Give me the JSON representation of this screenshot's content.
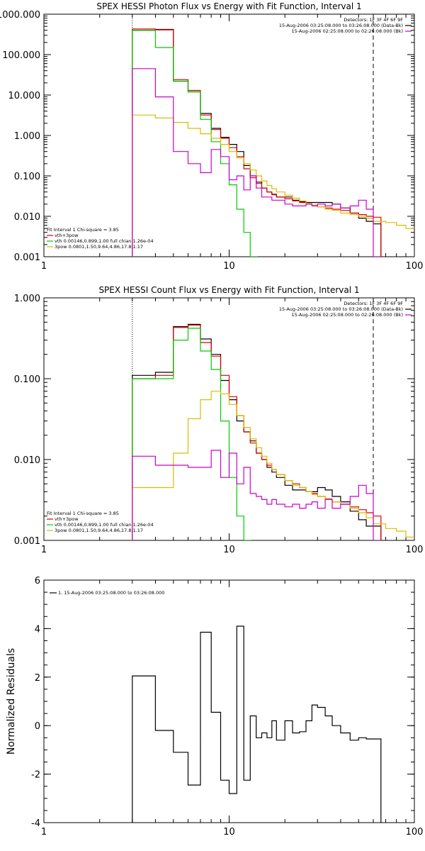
{
  "figure_title": "",
  "chart_data": [
    {
      "type": "line",
      "title": "SPEX HESSI Photon Flux vs Energy with Fit Function, Interval 1",
      "xscale": "log",
      "yscale": "log",
      "xlim": [
        1,
        100
      ],
      "ylim": [
        0.001,
        1000
      ],
      "xticks": [
        1,
        10,
        100
      ],
      "xtick_labels": [
        "1",
        "10",
        "100"
      ],
      "yticks": [
        0.001,
        0.01,
        0.1,
        1,
        10,
        100,
        1000
      ],
      "ytick_labels": [
        "0.001",
        "0.010",
        "0.100",
        "1.000",
        "10.000",
        "100.000",
        "1000.000"
      ],
      "xlabel": "",
      "ylabel": "",
      "vlines": [
        {
          "x": 3.0,
          "style": "dotted",
          "color": "#000000"
        },
        {
          "x": 60.0,
          "style": "dashed",
          "color": "#000000"
        }
      ],
      "info_legend": {
        "placement": "top-right",
        "lines": [
          {
            "text": "Detectors: 1F 3F 4F 6F 9F",
            "color": "#000000"
          },
          {
            "text": "15-Aug-2006 03:25:08.000 to 03:26:08.000 (Data-Bk)",
            "color": "#000000"
          },
          {
            "text": "15-Aug-2006 02:25:08.000 to 02:26:08.000 (Bk)",
            "color": "#cc00cc"
          }
        ]
      },
      "fit_legend": {
        "placement": "bottom-left",
        "header": "Fit Interval 1    Chi-square = 3.85",
        "entries": [
          {
            "text": "vth+3pow",
            "color": "#dd0000"
          },
          {
            "text": "vth 0.00146,0.899,1.00   full chian 1.26e-04",
            "color": "#00cc00"
          },
          {
            "text": "3pow 0.0801,1.50,9.64,4.86,17.8,1.17",
            "color": "#ddbb00"
          }
        ]
      },
      "series": [
        {
          "role": "data",
          "color": "#000000",
          "drawstyle": "steps",
          "x": [
            3,
            4,
            5,
            6,
            7,
            8,
            9,
            10,
            11,
            12,
            13,
            14,
            15,
            16,
            17,
            18,
            20,
            22,
            24,
            26,
            28,
            30,
            33,
            36,
            40,
            45,
            50,
            55,
            60
          ],
          "y": [
            400,
            420,
            22,
            12,
            3.5,
            1.5,
            0.9,
            0.6,
            0.4,
            0.18,
            0.1,
            0.07,
            0.05,
            0.04,
            0.035,
            0.03,
            0.03,
            0.025,
            0.023,
            0.022,
            0.022,
            0.022,
            0.022,
            0.02,
            0.016,
            0.012,
            0.009,
            0.0075,
            0.0065
          ]
        },
        {
          "role": "total",
          "color": "#dd0000",
          "drawstyle": "steps",
          "x": [
            3,
            4,
            5,
            6,
            7,
            8,
            9,
            10,
            11,
            12,
            13,
            14,
            15,
            16,
            17,
            18,
            20,
            22,
            24,
            26,
            28,
            30,
            33,
            36,
            40,
            45,
            50,
            55,
            60
          ],
          "y": [
            430,
            410,
            24,
            13,
            3.2,
            1.4,
            0.85,
            0.5,
            0.3,
            0.15,
            0.09,
            0.065,
            0.05,
            0.04,
            0.034,
            0.03,
            0.027,
            0.024,
            0.022,
            0.02,
            0.018,
            0.017,
            0.016,
            0.015,
            0.014,
            0.012,
            0.011,
            0.01,
            0.0095
          ]
        },
        {
          "role": "thermal",
          "color": "#00cc00",
          "drawstyle": "steps",
          "x": [
            3,
            4,
            5,
            6,
            7,
            8,
            9,
            10,
            11,
            12,
            13
          ],
          "y": [
            400,
            150,
            22,
            12,
            2.5,
            0.7,
            0.2,
            0.06,
            0.015,
            0.004,
            0.001
          ]
        },
        {
          "role": "nonthermal",
          "color": "#ddbb00",
          "drawstyle": "steps",
          "x": [
            3,
            4,
            5,
            6,
            7,
            8,
            9,
            10,
            11,
            12,
            13,
            14,
            15,
            16,
            17,
            18,
            20,
            22,
            24,
            26,
            28,
            30,
            33,
            36,
            40,
            45,
            50,
            55,
            60,
            70,
            80,
            90,
            100
          ],
          "y": [
            3.2,
            2.7,
            2.1,
            1.5,
            1.1,
            0.85,
            0.6,
            0.4,
            0.28,
            0.2,
            0.14,
            0.1,
            0.075,
            0.058,
            0.048,
            0.04,
            0.033,
            0.028,
            0.024,
            0.021,
            0.019,
            0.017,
            0.015,
            0.014,
            0.012,
            0.011,
            0.01,
            0.009,
            0.0075,
            0.007,
            0.006,
            0.005,
            0.005
          ]
        },
        {
          "role": "background",
          "color": "#cc00cc",
          "drawstyle": "steps",
          "x": [
            3,
            4,
            5,
            6,
            7,
            8,
            9,
            10,
            11,
            12,
            13,
            14,
            15,
            16,
            17,
            18,
            20,
            22,
            24,
            26,
            28,
            30,
            33,
            36,
            40,
            45,
            50,
            55,
            60
          ],
          "y": [
            45,
            9,
            0.4,
            0.2,
            0.12,
            0.45,
            0.3,
            0.08,
            0.1,
            0.045,
            0.1,
            0.05,
            0.03,
            0.03,
            0.025,
            0.025,
            0.02,
            0.018,
            0.018,
            0.02,
            0.018,
            0.02,
            0.018,
            0.02,
            0.016,
            0.018,
            0.025,
            0.015,
            0.001
          ]
        }
      ]
    },
    {
      "type": "line",
      "title": "SPEX HESSI Count Flux vs Energy with Fit Function, Interval 1",
      "xscale": "log",
      "yscale": "log",
      "xlim": [
        1,
        100
      ],
      "ylim": [
        0.001,
        1.0
      ],
      "xticks": [
        1,
        10,
        100
      ],
      "xtick_labels": [
        "1",
        "10",
        "100"
      ],
      "yticks": [
        0.001,
        0.01,
        0.1,
        1
      ],
      "ytick_labels": [
        "0.001",
        "0.010",
        "0.100",
        "1.000"
      ],
      "xlabel": "",
      "ylabel": "",
      "vlines": [
        {
          "x": 3.0,
          "style": "dotted",
          "color": "#000000"
        },
        {
          "x": 60.0,
          "style": "dashed",
          "color": "#000000"
        }
      ],
      "info_legend": {
        "placement": "top-right",
        "lines": [
          {
            "text": "Detectors: 1F 3F 4F 6F 9F",
            "color": "#000000"
          },
          {
            "text": "15-Aug-2006 03:25:08.000 to 03:26:08.000 (Data-Bk)",
            "color": "#000000"
          },
          {
            "text": "15-Aug-2006 02:25:08.000 to 02:26:08.000 (Bk)",
            "color": "#cc00cc"
          }
        ]
      },
      "fit_legend": {
        "placement": "bottom-left",
        "header": "Fit Interval 1    Chi-square = 3.85",
        "entries": [
          {
            "text": "vth+3pow",
            "color": "#dd0000"
          },
          {
            "text": "vth 0.00146,0.899,1.00   full chian 1.26e-04",
            "color": "#00cc00"
          },
          {
            "text": "3pow 0.0801,1.50,9.64,4.86,17.8,1.17",
            "color": "#ddbb00"
          }
        ]
      },
      "series": [
        {
          "role": "data",
          "color": "#000000",
          "drawstyle": "steps",
          "x": [
            3,
            4,
            5,
            6,
            7,
            8,
            9,
            10,
            11,
            12,
            13,
            14,
            15,
            16,
            17,
            18,
            20,
            22,
            24,
            26,
            28,
            30,
            33,
            36,
            40,
            45,
            50,
            55,
            60
          ],
          "y": [
            0.11,
            0.12,
            0.44,
            0.47,
            0.31,
            0.2,
            0.095,
            0.055,
            0.03,
            0.022,
            0.017,
            0.012,
            0.01,
            0.008,
            0.007,
            0.006,
            0.0048,
            0.0042,
            0.0042,
            0.004,
            0.004,
            0.0045,
            0.0042,
            0.0035,
            0.003,
            0.0023,
            0.0018,
            0.0015,
            0.0015
          ]
        },
        {
          "role": "total",
          "color": "#dd0000",
          "drawstyle": "steps",
          "x": [
            3,
            4,
            5,
            6,
            7,
            8,
            9,
            10,
            11,
            12,
            13,
            14,
            15,
            16,
            17,
            18,
            20,
            22,
            24,
            26,
            28,
            30,
            33,
            36,
            40,
            45,
            50,
            55,
            60
          ],
          "y": [
            0.1,
            0.11,
            0.43,
            0.46,
            0.28,
            0.19,
            0.11,
            0.06,
            0.035,
            0.022,
            0.016,
            0.012,
            0.01,
            0.0085,
            0.0075,
            0.0065,
            0.0055,
            0.005,
            0.0045,
            0.004,
            0.0038,
            0.0035,
            0.0032,
            0.003,
            0.0028,
            0.0026,
            0.0024,
            0.0022,
            0.002
          ]
        },
        {
          "role": "thermal",
          "color": "#00cc00",
          "drawstyle": "steps",
          "x": [
            3,
            4,
            5,
            6,
            7,
            8,
            9,
            10,
            11,
            12
          ],
          "y": [
            0.1,
            0.1,
            0.3,
            0.42,
            0.22,
            0.13,
            0.03,
            0.006,
            0.002,
            0.001
          ]
        },
        {
          "role": "nonthermal",
          "color": "#ddbb00",
          "drawstyle": "steps",
          "x": [
            3,
            4,
            5,
            6,
            7,
            8,
            9,
            10,
            11,
            12,
            13,
            14,
            15,
            16,
            17,
            18,
            20,
            22,
            24,
            26,
            28,
            30,
            33,
            36,
            40,
            45,
            50,
            55,
            60,
            70,
            80,
            90,
            100
          ],
          "y": [
            0.0045,
            0.0045,
            0.012,
            0.032,
            0.055,
            0.07,
            0.065,
            0.048,
            0.035,
            0.025,
            0.018,
            0.014,
            0.011,
            0.009,
            0.0075,
            0.0065,
            0.0055,
            0.0048,
            0.0045,
            0.004,
            0.0037,
            0.0035,
            0.0033,
            0.003,
            0.0028,
            0.0025,
            0.0022,
            0.0019,
            0.0016,
            0.0014,
            0.0013,
            0.0011,
            0.0011
          ]
        },
        {
          "role": "background",
          "color": "#cc00cc",
          "drawstyle": "steps",
          "x": [
            3,
            4,
            5,
            6,
            7,
            8,
            9,
            10,
            11,
            12,
            13,
            14,
            15,
            16,
            17,
            18,
            20,
            22,
            24,
            26,
            28,
            30,
            33,
            36,
            40,
            45,
            50,
            55,
            60
          ],
          "y": [
            0.011,
            0.0085,
            0.0085,
            0.008,
            0.008,
            0.013,
            0.006,
            0.012,
            0.005,
            0.008,
            0.0038,
            0.0035,
            0.0032,
            0.0028,
            0.0032,
            0.0028,
            0.0026,
            0.0028,
            0.0025,
            0.0028,
            0.003,
            0.0025,
            0.0032,
            0.0025,
            0.0028,
            0.0035,
            0.0048,
            0.0038,
            0.001
          ]
        }
      ]
    },
    {
      "type": "line",
      "title": "",
      "xscale": "log",
      "yscale": "linear",
      "xlim": [
        1,
        100
      ],
      "ylim": [
        -4,
        6
      ],
      "xticks": [
        1,
        10,
        100
      ],
      "xtick_labels": [
        "1",
        "10",
        "100"
      ],
      "yticks": [
        -4,
        -2,
        0,
        2,
        4,
        6
      ],
      "ytick_labels": [
        "-4",
        "-2",
        "0",
        "2",
        "4",
        "6"
      ],
      "xlabel": "",
      "ylabel": "Normalized Residuals",
      "legend": {
        "placement": "top-left",
        "entries": [
          {
            "text": "1. 15-Aug-2006 03:25:08.000 to 03:26:08.000",
            "color": "#000000"
          }
        ]
      },
      "series": [
        {
          "name": "1. 15-Aug-2006 03:25:08.000 to 03:26:08.000",
          "color": "#000000",
          "drawstyle": "steps",
          "x": [
            3,
            4,
            5,
            6,
            7,
            8,
            9,
            10,
            11,
            12,
            13,
            14,
            15,
            16,
            17,
            18,
            20,
            22,
            24,
            26,
            28,
            30,
            33,
            36,
            40,
            45,
            50,
            55,
            60
          ],
          "y": [
            2.05,
            -0.2,
            -1.1,
            -2.45,
            3.85,
            0.55,
            -2.25,
            -2.8,
            4.1,
            -2.25,
            0.4,
            -0.5,
            -0.3,
            -0.5,
            0.2,
            -0.6,
            0.2,
            -0.3,
            -0.25,
            0.2,
            0.85,
            0.75,
            0.4,
            0.0,
            -0.3,
            -0.6,
            -0.5,
            -0.55,
            -0.55
          ]
        }
      ]
    }
  ]
}
